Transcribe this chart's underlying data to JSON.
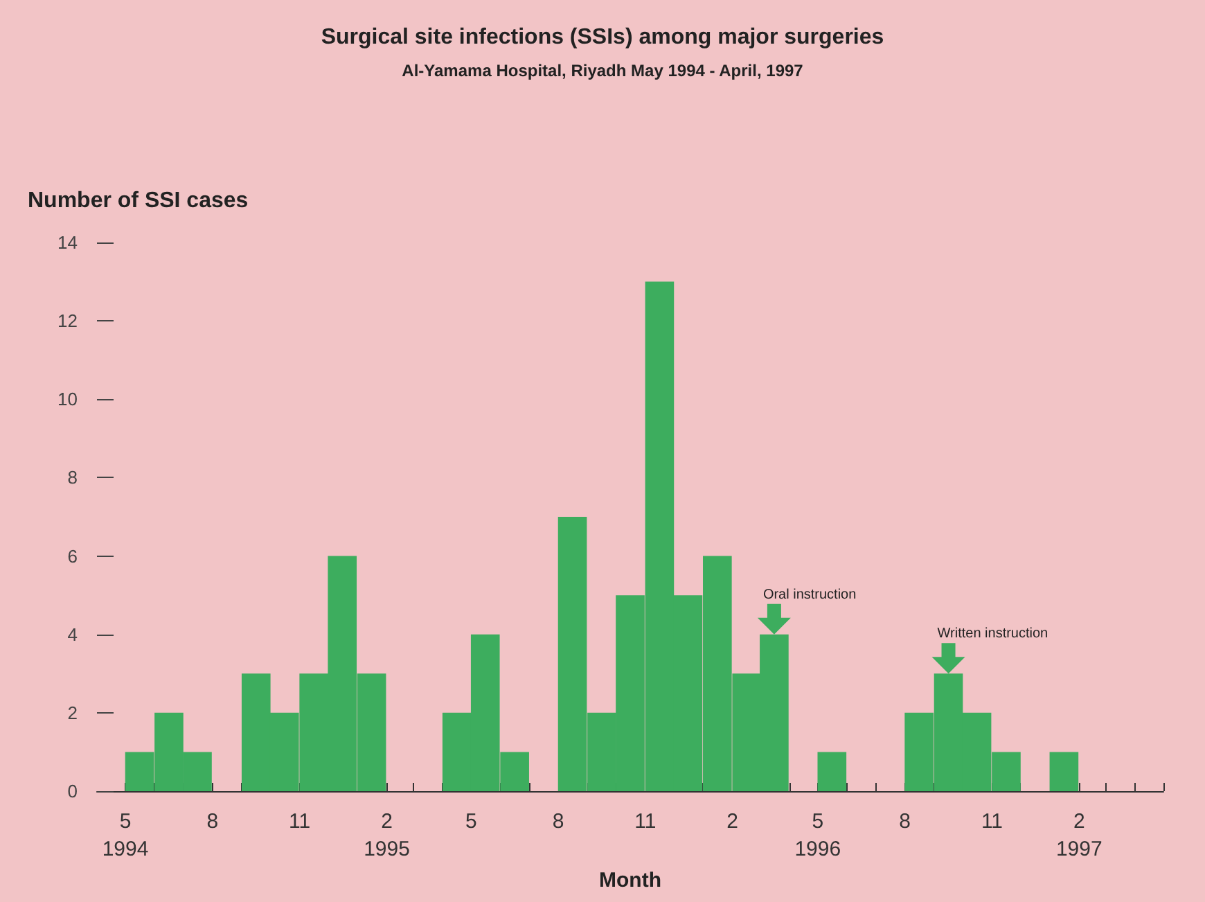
{
  "chart_data": {
    "type": "bar",
    "title": "Surgical site infections (SSIs) among major surgeries",
    "subtitle": "Al-Yamama Hospital, Riyadh May 1994 - April, 1997",
    "ylabel": "Number of SSI cases",
    "xlabel": "Month",
    "x": [
      "1994-05-16",
      "1994-06-16",
      "1994-07-16",
      "1994-08-16",
      "1994-09-16",
      "1994-10-16",
      "1994-11-16",
      "1994-12-16",
      "1995-01-16",
      "1995-02-16",
      "1995-03-16",
      "1995-04-16",
      "1995-05-16",
      "1995-06-16",
      "1995-07-16",
      "1995-08-16",
      "1995-09-16",
      "1995-10-16",
      "1995-11-16",
      "1995-12-16",
      "1996-01-16",
      "1996-02-16",
      "1996-03-16",
      "1996-04-16",
      "1996-05-16",
      "1996-06-16",
      "1996-07-16",
      "1996-08-16",
      "1996-09-16",
      "1996-10-16",
      "1996-11-16",
      "1996-12-16",
      "1997-01-16",
      "1997-02-16",
      "1997-03-16",
      "1997-04-16"
    ],
    "values": [
      1,
      2,
      1,
      0,
      3,
      2,
      3,
      6,
      3,
      0,
      0,
      2,
      4,
      1,
      0,
      7,
      2,
      5,
      13,
      5,
      6,
      3,
      4,
      0,
      1,
      0,
      0,
      2,
      3,
      2,
      1,
      0,
      1,
      0,
      0,
      0
    ],
    "color": "#3dad5e",
    "xlim": [
      "1994-04",
      "1997-05"
    ],
    "xticks": [
      {
        "value": "1994-05",
        "label": "5\n1994"
      },
      {
        "value": "1994-06",
        "label": null
      },
      {
        "value": "1994-07",
        "label": null
      },
      {
        "value": "1994-08",
        "label": "8"
      },
      {
        "value": "1994-09",
        "label": null
      },
      {
        "value": "1994-10",
        "label": null
      },
      {
        "value": "1994-11",
        "label": "11"
      },
      {
        "value": "1994-12",
        "label": null
      },
      {
        "value": "1995-01",
        "label": null
      },
      {
        "value": "1995-02",
        "label": "2\n1995"
      },
      {
        "value": "1995-03",
        "label": null
      },
      {
        "value": "1995-04",
        "label": null
      },
      {
        "value": "1995-05",
        "label": "5"
      },
      {
        "value": "1995-06",
        "label": null
      },
      {
        "value": "1995-07",
        "label": null
      },
      {
        "value": "1995-08",
        "label": "8"
      },
      {
        "value": "1995-09",
        "label": null
      },
      {
        "value": "1995-10",
        "label": null
      },
      {
        "value": "1995-11",
        "label": "11"
      },
      {
        "value": "1995-12",
        "label": null
      },
      {
        "value": "1996-01",
        "label": null
      },
      {
        "value": "1996-02",
        "label": "2"
      },
      {
        "value": "1996-03",
        "label": null
      },
      {
        "value": "1996-04",
        "label": null
      },
      {
        "value": "1996-05",
        "label": "5\n1996"
      },
      {
        "value": "1996-06",
        "label": null
      },
      {
        "value": "1996-07",
        "label": null
      },
      {
        "value": "1996-08",
        "label": "8"
      },
      {
        "value": "1996-09",
        "label": null
      },
      {
        "value": "1996-10",
        "label": null
      },
      {
        "value": "1996-11",
        "label": "11"
      },
      {
        "value": "1996-12",
        "label": null
      },
      {
        "value": "1997-01",
        "label": null
      },
      {
        "value": "1997-02",
        "label": "2\n1997"
      },
      {
        "value": "1997-03",
        "label": null
      },
      {
        "value": "1997-04",
        "label": null
      },
      {
        "value": "1997-05",
        "label": null
      }
    ],
    "ylim": [
      0,
      14
    ],
    "yticks": [
      0,
      2,
      4,
      6,
      8,
      10,
      12,
      14
    ],
    "grid": false,
    "annotations": [
      {
        "text": "Oral instruction",
        "x": "1996-03-16",
        "y": 4
      },
      {
        "text": "Written instruction",
        "x": "1996-09-16",
        "y": 3
      }
    ]
  }
}
